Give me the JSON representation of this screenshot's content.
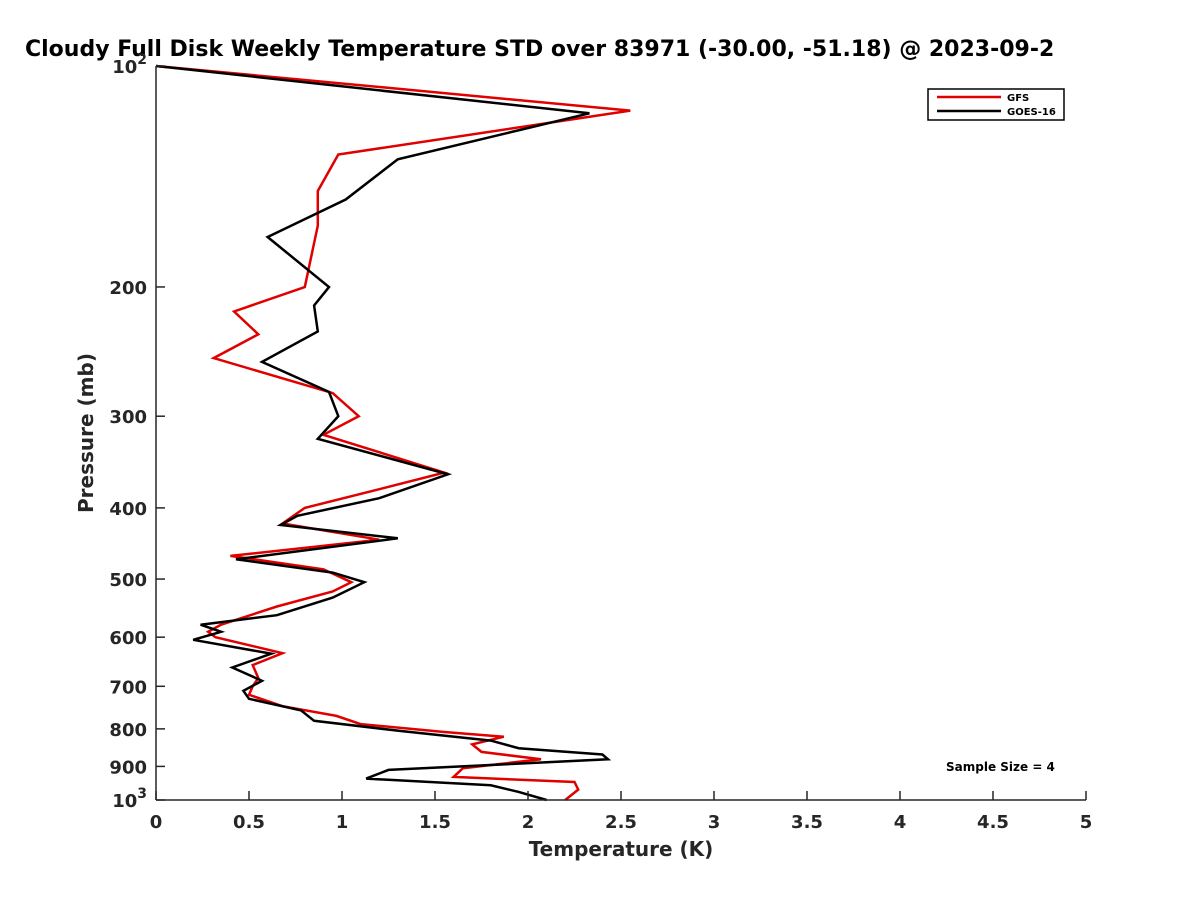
{
  "chart_data": {
    "type": "line",
    "title": "Cloudy Full Disk Weekly Temperature STD over 83971 (-30.00, -51.18) @ 2023-09-2",
    "xlabel": "Temperature (K)",
    "ylabel": "Pressure (mb)",
    "xlim": [
      0,
      5
    ],
    "ylim": [
      100,
      1000
    ],
    "y_scale": "log",
    "y_reversed": true,
    "grid": false,
    "legend_position": "top-right",
    "x_ticks": [
      "0",
      "0.5",
      "1",
      "1.5",
      "2",
      "2.5",
      "3",
      "3.5",
      "4",
      "4.5",
      "5"
    ],
    "y_ticks": [
      {
        "value": 100,
        "base": "10",
        "exp": "2"
      },
      {
        "value": 200,
        "label": "200"
      },
      {
        "value": 300,
        "label": "300"
      },
      {
        "value": 400,
        "label": "400"
      },
      {
        "value": 500,
        "label": "500"
      },
      {
        "value": 600,
        "label": "600"
      },
      {
        "value": 700,
        "label": "700"
      },
      {
        "value": 800,
        "label": "800"
      },
      {
        "value": 900,
        "label": "900"
      },
      {
        "value": 1000,
        "base": "10",
        "exp": "3"
      }
    ],
    "annotation": "Sample Size = 4",
    "series": [
      {
        "name": "GFS",
        "color": "#e00000",
        "points": [
          [
            0.0,
            100
          ],
          [
            2.55,
            115
          ],
          [
            0.98,
            132
          ],
          [
            0.87,
            148
          ],
          [
            0.87,
            165
          ],
          [
            0.8,
            200
          ],
          [
            0.42,
            216
          ],
          [
            0.55,
            232
          ],
          [
            0.31,
            250
          ],
          [
            0.95,
            279
          ],
          [
            1.09,
            300
          ],
          [
            0.9,
            318
          ],
          [
            1.55,
            358
          ],
          [
            1.15,
            380
          ],
          [
            0.8,
            400
          ],
          [
            0.68,
            420
          ],
          [
            1.2,
            442
          ],
          [
            0.4,
            465
          ],
          [
            0.9,
            485
          ],
          [
            1.05,
            505
          ],
          [
            0.95,
            520
          ],
          [
            0.65,
            545
          ],
          [
            0.35,
            577
          ],
          [
            0.28,
            590
          ],
          [
            0.32,
            600
          ],
          [
            0.68,
            631
          ],
          [
            0.52,
            655
          ],
          [
            0.55,
            682
          ],
          [
            0.52,
            700
          ],
          [
            0.5,
            719
          ],
          [
            0.68,
            745
          ],
          [
            0.97,
            768
          ],
          [
            1.1,
            788
          ],
          [
            1.55,
            808
          ],
          [
            1.87,
            820
          ],
          [
            1.7,
            840
          ],
          [
            1.75,
            860
          ],
          [
            2.07,
            880
          ],
          [
            1.65,
            905
          ],
          [
            1.6,
            930
          ],
          [
            2.25,
            945
          ],
          [
            2.27,
            968
          ],
          [
            2.2,
            1000
          ]
        ]
      },
      {
        "name": "GOES-16",
        "color": "#000000",
        "points": [
          [
            0.0,
            100
          ],
          [
            2.33,
            116
          ],
          [
            1.3,
            134
          ],
          [
            1.02,
            152
          ],
          [
            0.6,
            171
          ],
          [
            0.93,
            200
          ],
          [
            0.85,
            212
          ],
          [
            0.87,
            230
          ],
          [
            0.57,
            253
          ],
          [
            0.93,
            278
          ],
          [
            0.98,
            300
          ],
          [
            0.87,
            322
          ],
          [
            1.57,
            360
          ],
          [
            1.2,
            388
          ],
          [
            0.76,
            410
          ],
          [
            0.67,
            422
          ],
          [
            1.3,
            440
          ],
          [
            0.43,
            470
          ],
          [
            0.95,
            490
          ],
          [
            1.12,
            505
          ],
          [
            0.95,
            530
          ],
          [
            0.65,
            560
          ],
          [
            0.24,
            577
          ],
          [
            0.35,
            590
          ],
          [
            0.2,
            605
          ],
          [
            0.62,
            632
          ],
          [
            0.41,
            660
          ],
          [
            0.57,
            688
          ],
          [
            0.47,
            710
          ],
          [
            0.5,
            728
          ],
          [
            0.78,
            755
          ],
          [
            0.85,
            780
          ],
          [
            1.31,
            805
          ],
          [
            1.8,
            830
          ],
          [
            1.95,
            850
          ],
          [
            2.4,
            867
          ],
          [
            2.43,
            880
          ],
          [
            1.25,
            910
          ],
          [
            1.13,
            935
          ],
          [
            1.8,
            955
          ],
          [
            1.95,
            975
          ],
          [
            2.1,
            1000
          ]
        ]
      }
    ]
  }
}
